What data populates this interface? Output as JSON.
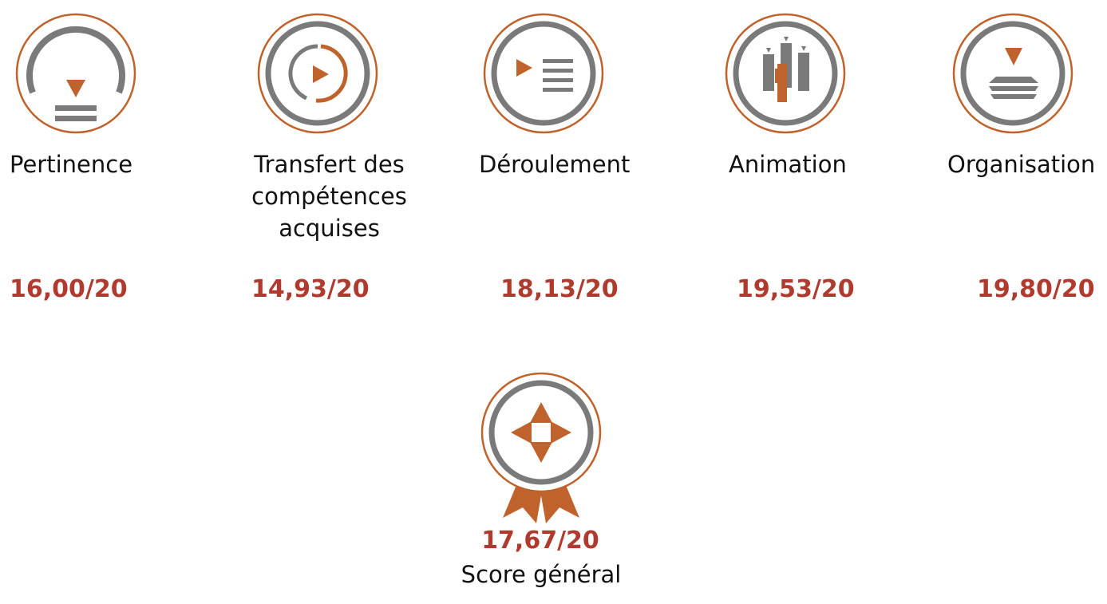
{
  "categories": [
    {
      "id": "pertinence",
      "label": "Pertinence",
      "score": "16,00/20",
      "icon": "pertinence-icon"
    },
    {
      "id": "transfert",
      "label": "Transfert des\ncompétences\nacquises",
      "score": "14,93/20",
      "icon": "transfer-icon"
    },
    {
      "id": "deroulement",
      "label": "Déroulement",
      "score": "18,13/20",
      "icon": "progress-icon"
    },
    {
      "id": "animation",
      "label": "Animation",
      "score": "19,53/20",
      "icon": "animation-icon"
    },
    {
      "id": "organisation",
      "label": "Organisation",
      "score": "19,80/20",
      "icon": "organisation-icon"
    }
  ],
  "overall": {
    "score": "17,67/20",
    "label": "Score général",
    "icon": "award-medal-icon"
  },
  "colors": {
    "accent": "#c0622b",
    "ring": "#7a7a7a",
    "score": "#b03a2e",
    "text": "#111111"
  }
}
